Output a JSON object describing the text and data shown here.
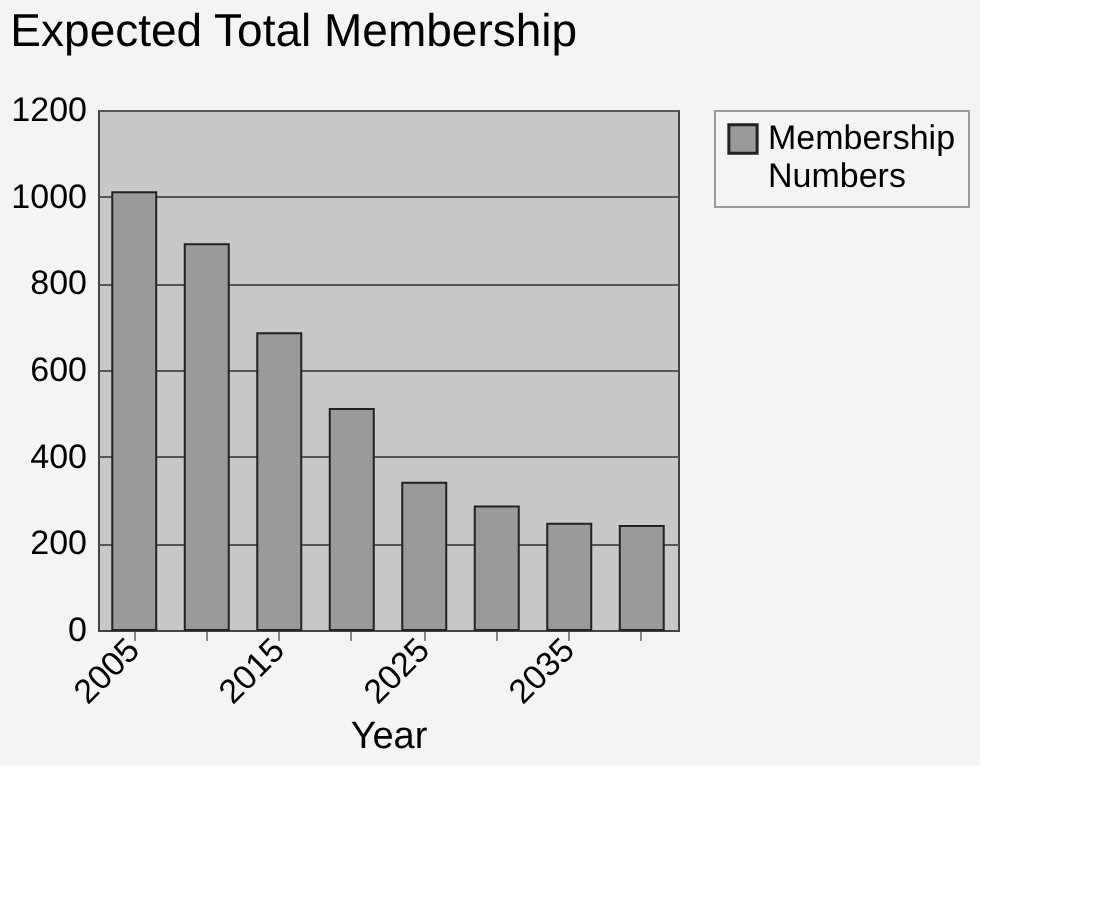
{
  "chart_data": {
    "type": "bar",
    "title": "Expected Total Membership",
    "xlabel": "Year",
    "categories": [
      "2005",
      null,
      "2015",
      null,
      "2025",
      null,
      "2035",
      null
    ],
    "series": [
      {
        "name": "Membership Numbers",
        "color": "#9a9a9a",
        "values": [
          1010,
          890,
          685,
          510,
          340,
          285,
          245,
          240
        ]
      }
    ],
    "ylim": [
      0,
      1200
    ],
    "yticks": [
      0,
      200,
      400,
      600,
      800,
      1000,
      1200
    ],
    "grid": "y",
    "legend": "right"
  }
}
